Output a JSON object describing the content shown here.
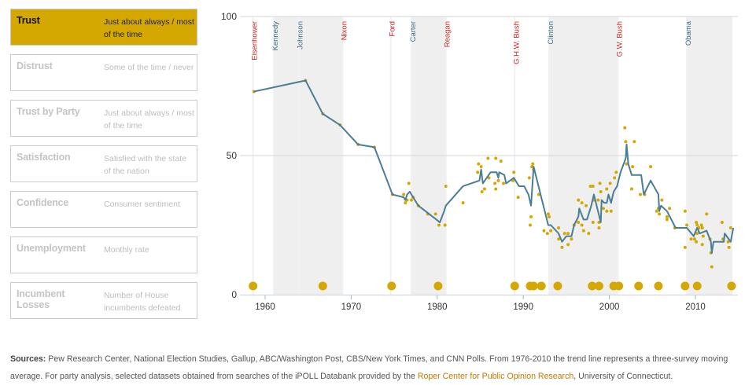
{
  "sidebar": {
    "items": [
      {
        "label": "Trust",
        "desc": "Just about always / most of the time",
        "active": true
      },
      {
        "label": "Distrust",
        "desc": "Some of the time / never",
        "active": false
      },
      {
        "label": "Trust by Party",
        "desc": "Just about always / most of the time",
        "active": false
      },
      {
        "label": "Satisfaction",
        "desc": "Satisfied with the state of the nation",
        "active": false
      },
      {
        "label": "Confidence",
        "desc": "Consumer sentiment",
        "active": false
      },
      {
        "label": "Unemployment",
        "desc": "Monthly rate",
        "active": false
      },
      {
        "label": "Incumbent Losses",
        "desc": "Number of House incumbents defeated",
        "active": false
      }
    ]
  },
  "footer": {
    "sources_label": "Sources:",
    "text1": " Pew Research Center, National Election Studies, Gallup, ABC/Washington Post, CBS/New York Times, and CNN Polls. From 1976-2010 the trend line represents a three-survey moving average. For party analysis, selected datasets obtained from searches of the iPOLL Databank provided by the ",
    "link": "Roper Center for Public Opinion Research",
    "text2": ", University of Connecticut."
  },
  "colors": {
    "accent": "#d4a800",
    "line": "#4a7d96",
    "band": "#efefef",
    "republican": "#cc1f1f",
    "democrat": "#3d6f88",
    "link": "#c07a00"
  },
  "chart_data": {
    "type": "line",
    "xlim": [
      1957,
      2015
    ],
    "ylim": [
      0,
      100
    ],
    "x_ticks": [
      1960,
      1970,
      1980,
      1990,
      2000,
      2010
    ],
    "y_ticks": [
      0,
      50,
      100
    ],
    "gridlines_y": [
      50,
      100
    ],
    "presidents": [
      {
        "name": "Eisenhower",
        "start": 1958.6,
        "end": 1961,
        "party": "R"
      },
      {
        "name": "Kennedy",
        "start": 1961,
        "end": 1963.9,
        "party": "D"
      },
      {
        "name": "Johnson",
        "start": 1963.9,
        "end": 1969,
        "party": "D"
      },
      {
        "name": "Nixon",
        "start": 1969,
        "end": 1974.6,
        "party": "R"
      },
      {
        "name": "Ford",
        "start": 1974.6,
        "end": 1977,
        "party": "R"
      },
      {
        "name": "Carter",
        "start": 1977,
        "end": 1981,
        "party": "D"
      },
      {
        "name": "Reagan",
        "start": 1981,
        "end": 1989,
        "party": "R"
      },
      {
        "name": "G.H.W. Bush",
        "start": 1989,
        "end": 1993,
        "party": "R"
      },
      {
        "name": "Clinton",
        "start": 1993,
        "end": 2001,
        "party": "D"
      },
      {
        "name": "G.W. Bush",
        "start": 2001,
        "end": 2009,
        "party": "R"
      },
      {
        "name": "Obama",
        "start": 2009,
        "end": 2014.3,
        "party": "D"
      }
    ],
    "trend_line": [
      [
        1958.7,
        73
      ],
      [
        1964.7,
        77
      ],
      [
        1966.7,
        65
      ],
      [
        1968.7,
        61
      ],
      [
        1970.8,
        54
      ],
      [
        1972.7,
        53
      ],
      [
        1974.8,
        36
      ],
      [
        1976.1,
        35
      ],
      [
        1976.3,
        34
      ],
      [
        1976.5,
        36
      ],
      [
        1976.8,
        37
      ],
      [
        1977.8,
        32
      ],
      [
        1979.9,
        27
      ],
      [
        1980.3,
        26
      ],
      [
        1980.8,
        30
      ],
      [
        1981.0,
        32
      ],
      [
        1983.0,
        39
      ],
      [
        1984.9,
        41
      ],
      [
        1985.1,
        45
      ],
      [
        1985.3,
        40
      ],
      [
        1986.2,
        44
      ],
      [
        1986.9,
        44
      ],
      [
        1987.1,
        42
      ],
      [
        1987.2,
        44
      ],
      [
        1987.8,
        43
      ],
      [
        1988.0,
        40
      ],
      [
        1988.9,
        42
      ],
      [
        1989.5,
        39
      ],
      [
        1990.1,
        39
      ],
      [
        1990.6,
        36
      ],
      [
        1990.9,
        32
      ],
      [
        1991.2,
        46
      ],
      [
        1992.9,
        25
      ],
      [
        1993.2,
        25
      ],
      [
        1994.1,
        22
      ],
      [
        1994.5,
        19
      ],
      [
        1995.0,
        21
      ],
      [
        1995.6,
        21
      ],
      [
        1995.9,
        25
      ],
      [
        1996.4,
        28
      ],
      [
        1996.5,
        31
      ],
      [
        1997.0,
        27
      ],
      [
        1997.4,
        27
      ],
      [
        1997.9,
        32
      ],
      [
        1998.2,
        36
      ],
      [
        1999.0,
        26
      ],
      [
        1999.1,
        34
      ],
      [
        1999.4,
        33
      ],
      [
        1999.7,
        33
      ],
      [
        1999.9,
        36
      ],
      [
        2000.2,
        33
      ],
      [
        2000.5,
        37
      ],
      [
        2000.9,
        39
      ],
      [
        2001.3,
        44
      ],
      [
        2001.9,
        49
      ],
      [
        2002.0,
        54
      ],
      [
        2002.2,
        47
      ],
      [
        2002.6,
        43
      ],
      [
        2003.7,
        43
      ],
      [
        2004.0,
        36
      ],
      [
        2004.8,
        41
      ],
      [
        2005.7,
        36
      ],
      [
        2005.8,
        30
      ],
      [
        2006.0,
        32
      ],
      [
        2006.7,
        30
      ],
      [
        2007.7,
        24
      ],
      [
        2009.0,
        24
      ],
      [
        2009.8,
        21
      ],
      [
        2010.2,
        24
      ],
      [
        2010.5,
        22
      ],
      [
        2011.3,
        23
      ],
      [
        2011.8,
        19
      ],
      [
        2011.9,
        15
      ],
      [
        2012.1,
        19
      ],
      [
        2013.3,
        19
      ],
      [
        2013.4,
        22
      ],
      [
        2014.1,
        19
      ],
      [
        2014.4,
        24
      ]
    ],
    "survey_points": [
      [
        1958.7,
        73
      ],
      [
        1964.7,
        77
      ],
      [
        1966.7,
        65
      ],
      [
        1968.7,
        61
      ],
      [
        1970.8,
        54
      ],
      [
        1972.7,
        53
      ],
      [
        1974.8,
        36
      ],
      [
        1976.1,
        36
      ],
      [
        1976.3,
        33
      ],
      [
        1976.5,
        34
      ],
      [
        1976.7,
        40
      ],
      [
        1977.0,
        34
      ],
      [
        1977.2,
        35
      ],
      [
        1977.8,
        32
      ],
      [
        1978.9,
        29
      ],
      [
        1979.8,
        29
      ],
      [
        1980.2,
        25
      ],
      [
        1980.9,
        25
      ],
      [
        1981.0,
        39
      ],
      [
        1983.0,
        33
      ],
      [
        1984.8,
        47
      ],
      [
        1984.7,
        44
      ],
      [
        1985.1,
        46
      ],
      [
        1985.2,
        37
      ],
      [
        1985.5,
        38
      ],
      [
        1985.9,
        49
      ],
      [
        1986.0,
        42
      ],
      [
        1986.7,
        40
      ],
      [
        1986.8,
        49
      ],
      [
        1986.8,
        38
      ],
      [
        1987.1,
        41
      ],
      [
        1987.4,
        48
      ],
      [
        1987.7,
        40
      ],
      [
        1988.8,
        41
      ],
      [
        1988.9,
        44
      ],
      [
        1989.4,
        35
      ],
      [
        1990.7,
        42
      ],
      [
        1990.8,
        25
      ],
      [
        1990.9,
        28
      ],
      [
        1991.0,
        46
      ],
      [
        1991.1,
        47
      ],
      [
        1991.2,
        45
      ],
      [
        1991.8,
        36
      ],
      [
        1992.4,
        23
      ],
      [
        1992.8,
        22
      ],
      [
        1992.9,
        29
      ],
      [
        1993.0,
        28
      ],
      [
        1993.2,
        23
      ],
      [
        1994.1,
        24
      ],
      [
        1994.1,
        20
      ],
      [
        1994.5,
        17
      ],
      [
        1994.8,
        22
      ],
      [
        1995.2,
        22
      ],
      [
        1995.2,
        18
      ],
      [
        1995.6,
        20
      ],
      [
        1995.9,
        25
      ],
      [
        1996.4,
        34
      ],
      [
        1996.4,
        26
      ],
      [
        1996.8,
        33
      ],
      [
        1996.8,
        25
      ],
      [
        1997.0,
        23
      ],
      [
        1997.3,
        32
      ],
      [
        1997.6,
        22
      ],
      [
        1997.8,
        39
      ],
      [
        1998.1,
        39
      ],
      [
        1998.1,
        26
      ],
      [
        1998.2,
        34
      ],
      [
        1998.7,
        34
      ],
      [
        1998.8,
        24
      ],
      [
        1998.8,
        26
      ],
      [
        1998.9,
        40
      ],
      [
        1999.0,
        37
      ],
      [
        1999.3,
        31
      ],
      [
        1999.7,
        38
      ],
      [
        1999.7,
        30
      ],
      [
        2000.1,
        40
      ],
      [
        2000.2,
        30
      ],
      [
        2000.6,
        42
      ],
      [
        2000.8,
        44
      ],
      [
        2001.8,
        60
      ],
      [
        2001.9,
        55
      ],
      [
        2002.0,
        47
      ],
      [
        2002.6,
        38
      ],
      [
        2002.7,
        46
      ],
      [
        2002.9,
        55
      ],
      [
        2003.6,
        36
      ],
      [
        2004.1,
        36
      ],
      [
        2004.8,
        46
      ],
      [
        2005.5,
        30
      ],
      [
        2005.7,
        31
      ],
      [
        2005.8,
        29
      ],
      [
        2006.1,
        34
      ],
      [
        2006.7,
        28
      ],
      [
        2006.7,
        27
      ],
      [
        2007.0,
        31
      ],
      [
        2007.6,
        24
      ],
      [
        2008.8,
        30
      ],
      [
        2008.8,
        17
      ],
      [
        2009.0,
        25
      ],
      [
        2009.5,
        20
      ],
      [
        2009.9,
        20
      ],
      [
        2010.1,
        26
      ],
      [
        2010.1,
        19
      ],
      [
        2010.2,
        25
      ],
      [
        2010.2,
        22
      ],
      [
        2010.4,
        24
      ],
      [
        2010.7,
        25
      ],
      [
        2010.8,
        24
      ],
      [
        2010.8,
        18
      ],
      [
        2010.9,
        21
      ],
      [
        2011.3,
        29
      ],
      [
        2011.7,
        20
      ],
      [
        2011.8,
        15
      ],
      [
        2011.9,
        10
      ],
      [
        2013.1,
        26
      ],
      [
        2013.2,
        20
      ],
      [
        2013.8,
        19
      ],
      [
        2013.9,
        17
      ],
      [
        2014.1,
        24
      ]
    ],
    "event_markers_years": [
      1958.6,
      1966.7,
      1974.7,
      1980.1,
      1989.0,
      1990.8,
      1991.2,
      1992.1,
      1994.0,
      1998.0,
      1998.8,
      2000.5,
      2001.1,
      2003.4,
      2005.7,
      2008.8,
      2010.2,
      2014.2
    ]
  }
}
